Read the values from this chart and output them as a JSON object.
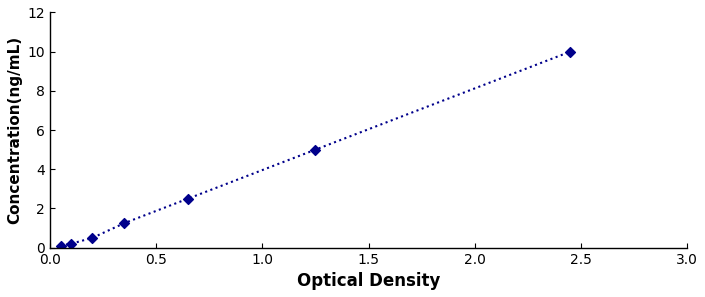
{
  "x_data": [
    0.05,
    0.1,
    0.2,
    0.35,
    0.65,
    1.25,
    2.45
  ],
  "y_data": [
    0.1,
    0.2,
    0.5,
    1.25,
    2.5,
    5.0,
    10.0
  ],
  "line_color": "#00008B",
  "marker_color": "#00008B",
  "marker_style": "D",
  "marker_size": 5,
  "line_style": ":",
  "line_width": 1.5,
  "xlabel": "Optical Density",
  "ylabel": "Concentration(ng/mL)",
  "xlim": [
    0,
    3
  ],
  "ylim": [
    0,
    12
  ],
  "xticks": [
    0,
    0.5,
    1,
    1.5,
    2,
    2.5,
    3
  ],
  "yticks": [
    0,
    2,
    4,
    6,
    8,
    10,
    12
  ],
  "xlabel_fontsize": 12,
  "ylabel_fontsize": 11,
  "tick_fontsize": 10,
  "figure_width": 7.05,
  "figure_height": 2.97,
  "dpi": 100,
  "bg_color": "#ffffff",
  "spine_color": "#000000"
}
